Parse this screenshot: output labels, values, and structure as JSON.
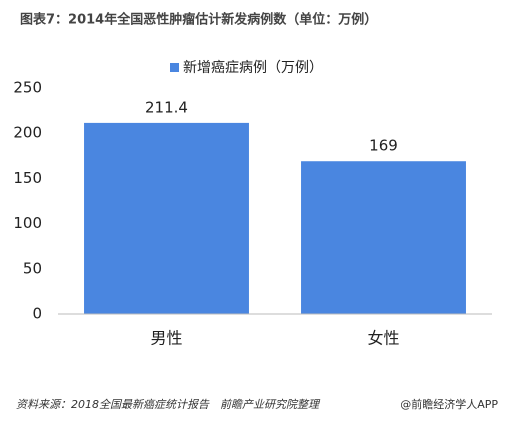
{
  "chart_data": {
    "type": "bar",
    "title": "图表7：2014年全国恶性肿瘤估计新发病例数（单位：万例）",
    "categories": [
      "男性",
      "女性"
    ],
    "series": [
      {
        "name": "新增癌症病例（万例）",
        "color": "#4a86e0",
        "values": [
          211.4,
          169
        ]
      }
    ],
    "ylim": [
      0,
      250
    ],
    "yticks": [
      0,
      50,
      100,
      150,
      200,
      250
    ],
    "grid": false,
    "legend": "top",
    "source": "资料来源：2018全国最新癌症统计报告　前瞻产业研究院整理",
    "credit": "@前瞻经济学人APP"
  }
}
